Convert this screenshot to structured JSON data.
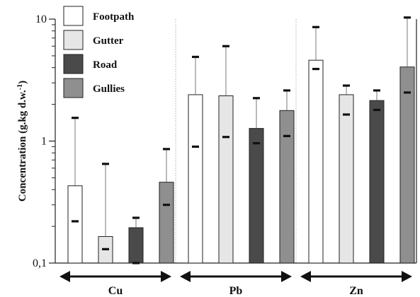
{
  "chart_data": {
    "type": "bar",
    "y_scale": "log",
    "ylim": [
      0.1,
      10
    ],
    "y_ticks": [
      {
        "value": 0.1,
        "label": "0,1"
      },
      {
        "value": 1,
        "label": "1"
      },
      {
        "value": 10,
        "label": "10"
      }
    ],
    "ylabel": "Concentration (g.kg d.w.",
    "ylabel_sup": "-1",
    "ylabel_end": ")",
    "grid": false,
    "legend_placement": "top-left",
    "categories": [
      "Cu",
      "Pb",
      "Zn"
    ],
    "series": [
      {
        "name": "Footpath",
        "color": "#ffffff",
        "values": [
          0.43,
          2.4,
          4.6
        ],
        "err_low": [
          0.22,
          0.9,
          3.9
        ],
        "err_high": [
          1.55,
          4.9,
          8.6
        ]
      },
      {
        "name": "Gutter",
        "color": "#e6e6e6",
        "values": [
          0.165,
          2.35,
          2.4
        ],
        "err_low": [
          0.13,
          1.08,
          1.65
        ],
        "err_high": [
          0.65,
          6.0,
          2.85
        ]
      },
      {
        "name": "Road",
        "color": "#4a4a4a",
        "values": [
          0.195,
          1.27,
          2.15
        ],
        "err_low": [
          0.1,
          0.96,
          1.8
        ],
        "err_high": [
          0.235,
          2.25,
          2.6
        ]
      },
      {
        "name": "Gullies",
        "color": "#8f8f8f",
        "values": [
          0.46,
          1.78,
          4.05
        ],
        "err_low": [
          0.3,
          1.1,
          2.5
        ],
        "err_high": [
          0.86,
          2.6,
          10.3
        ]
      }
    ]
  }
}
